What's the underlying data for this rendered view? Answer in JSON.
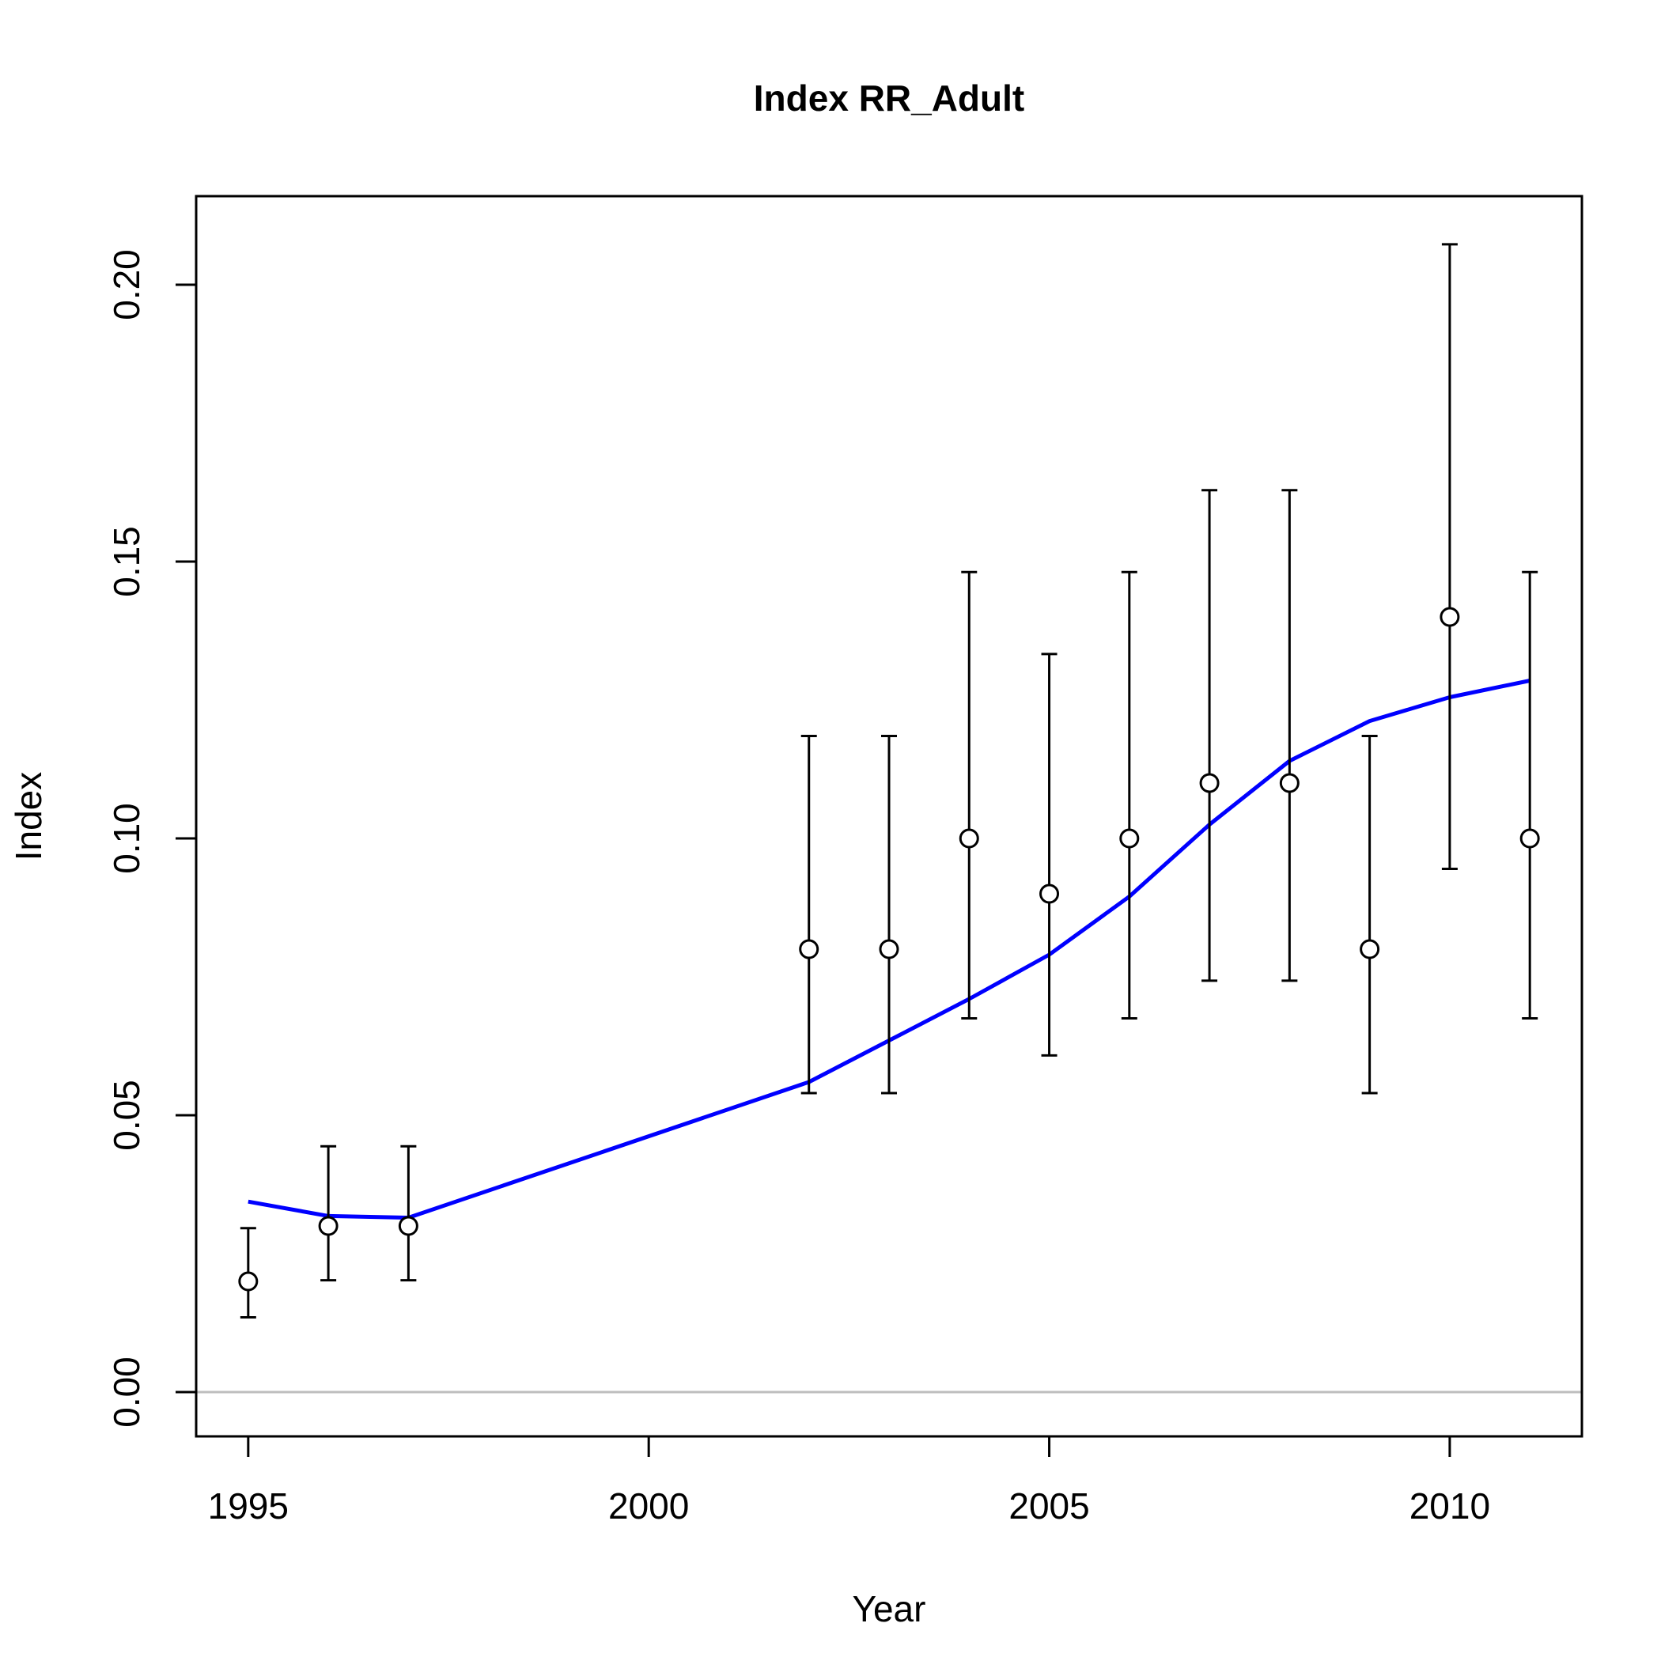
{
  "chart_data": {
    "type": "scatter",
    "title": "Index RR_Adult",
    "xlabel": "Year",
    "ylabel": "Index",
    "xlim": [
      1994.35,
      2011.65
    ],
    "ylim": [
      -0.008,
      0.216
    ],
    "x_ticks": [
      "1995",
      "2000",
      "2005",
      "2010"
    ],
    "y_ticks": [
      "0.00",
      "0.05",
      "0.10",
      "0.15",
      "0.20"
    ],
    "grid": false,
    "colors": {
      "fit_line": "#0000ff",
      "zero_line": "#bebebe",
      "observed": "#000000"
    },
    "observed": [
      {
        "year": 1995,
        "value": 0.02,
        "lower": 0.0135,
        "upper": 0.0296
      },
      {
        "year": 1996,
        "value": 0.03,
        "lower": 0.0202,
        "upper": 0.0444
      },
      {
        "year": 1997,
        "value": 0.03,
        "lower": 0.0202,
        "upper": 0.0444
      },
      {
        "year": 2002,
        "value": 0.08,
        "lower": 0.054,
        "upper": 0.1185
      },
      {
        "year": 2003,
        "value": 0.08,
        "lower": 0.054,
        "upper": 0.1185
      },
      {
        "year": 2004,
        "value": 0.1,
        "lower": 0.0675,
        "upper": 0.1481
      },
      {
        "year": 2005,
        "value": 0.09,
        "lower": 0.0608,
        "upper": 0.1333
      },
      {
        "year": 2006,
        "value": 0.1,
        "lower": 0.0675,
        "upper": 0.1481
      },
      {
        "year": 2007,
        "value": 0.11,
        "lower": 0.0743,
        "upper": 0.1629
      },
      {
        "year": 2008,
        "value": 0.11,
        "lower": 0.0743,
        "upper": 0.1629
      },
      {
        "year": 2009,
        "value": 0.08,
        "lower": 0.054,
        "upper": 0.1185
      },
      {
        "year": 2010,
        "value": 0.14,
        "lower": 0.0945,
        "upper": 0.2073
      },
      {
        "year": 2011,
        "value": 0.1,
        "lower": 0.0675,
        "upper": 0.1481
      }
    ],
    "expected": {
      "x": [
        1995,
        1996,
        1997,
        2002,
        2003,
        2004,
        2005,
        2006,
        2007,
        2008,
        2009,
        2010,
        2011
      ],
      "y": [
        0.0344,
        0.0318,
        0.0315,
        0.056,
        0.0635,
        0.071,
        0.079,
        0.0895,
        0.1025,
        0.114,
        0.1212,
        0.1255,
        0.1285
      ]
    }
  }
}
